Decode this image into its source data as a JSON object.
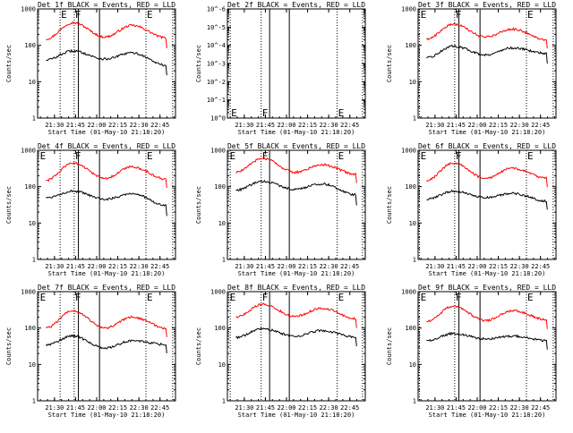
{
  "chart_data": [
    {
      "type": "line",
      "title": "Det 1f BLACK = Events, RED = LLD",
      "xlabel": "Start Time (01-May-10 21:18:20)",
      "ylabel": "Counts/sec",
      "x_ticks": [
        "21:30",
        "21:45",
        "22:00",
        "22:15",
        "22:30",
        "22:45"
      ],
      "y_ticks": [
        "1",
        "10",
        "100",
        "1000"
      ],
      "ylim": [
        1,
        1000
      ],
      "yscale": "log",
      "markers": [
        {
          "label": "E",
          "time": "21:34"
        },
        {
          "label": "F",
          "time": "21:44"
        },
        {
          "label": "E",
          "time": "22:35"
        }
      ],
      "solid_lines": [
        "21:47",
        "22:02"
      ],
      "dotted_lines": [
        "21:34",
        "21:44",
        "22:35",
        "22:54"
      ],
      "series": [
        {
          "color": "#ff0000",
          "peaks": [
            {
              "time": "21:24",
              "value": 150
            },
            {
              "time": "21:43",
              "value": 420
            },
            {
              "time": "22:06",
              "value": 170
            },
            {
              "time": "22:25",
              "value": 350
            },
            {
              "time": "22:50",
              "value": 160
            }
          ]
        },
        {
          "color": "#000000",
          "peaks": [
            {
              "time": "21:24",
              "value": 40
            },
            {
              "time": "21:43",
              "value": 70
            },
            {
              "time": "22:06",
              "value": 42
            },
            {
              "time": "22:25",
              "value": 62
            },
            {
              "time": "22:50",
              "value": 28
            }
          ]
        }
      ]
    },
    {
      "type": "line",
      "title": "Det 2f BLACK = Events, RED = LLD",
      "xlabel": "Start Time (01-May-10 21:18:20)",
      "ylabel": "Counts/sec",
      "x_ticks": [
        "21:30",
        "21:45",
        "22:00",
        "22:15",
        "22:30",
        "22:45"
      ],
      "y_ticks": [
        "10^0",
        "10^-1",
        "10^-2",
        "10^-3",
        "10^-4",
        "10^-5",
        "10^-6"
      ],
      "ylim": [
        1,
        1e-06
      ],
      "yscale": "log",
      "markers": [
        {
          "label": "E",
          "time": "21:20"
        },
        {
          "label": "F",
          "time": "21:42"
        },
        {
          "label": "E",
          "time": "22:36"
        }
      ],
      "solid_lines": [
        "21:48",
        "22:02"
      ],
      "dotted_lines": [
        "21:20",
        "21:42",
        "22:36",
        "22:54"
      ],
      "series": []
    },
    {
      "type": "line",
      "title": "Det 3f BLACK = Events, RED = LLD",
      "xlabel": "Start Time (01-May-10 21:18:20)",
      "ylabel": "Counts/sec",
      "x_ticks": [
        "21:30",
        "21:45",
        "22:00",
        "22:15",
        "22:30",
        "22:45"
      ],
      "y_ticks": [
        "1",
        "10",
        "100",
        "1000"
      ],
      "ylim": [
        1,
        1000
      ],
      "yscale": "log",
      "markers": [
        {
          "label": "E",
          "time": "21:19"
        },
        {
          "label": "F",
          "time": "21:44"
        },
        {
          "label": "E",
          "time": "22:35"
        }
      ],
      "solid_lines": [
        "21:47",
        "22:02"
      ],
      "dotted_lines": [
        "21:19",
        "21:44",
        "22:35",
        "22:54"
      ],
      "series": [
        {
          "color": "#ff0000",
          "peaks": [
            {
              "time": "21:24",
              "value": 150
            },
            {
              "time": "21:43",
              "value": 380
            },
            {
              "time": "22:06",
              "value": 170
            },
            {
              "time": "22:25",
              "value": 280
            },
            {
              "time": "22:50",
              "value": 140
            }
          ]
        },
        {
          "color": "#000000",
          "peaks": [
            {
              "time": "21:24",
              "value": 45
            },
            {
              "time": "21:43",
              "value": 95
            },
            {
              "time": "22:06",
              "value": 55
            },
            {
              "time": "22:25",
              "value": 85
            },
            {
              "time": "22:50",
              "value": 60
            }
          ]
        }
      ]
    },
    {
      "type": "line",
      "title": "Det 4f BLACK = Events, RED = LLD",
      "xlabel": "Start Time (01-May-10 21:18:20)",
      "ylabel": "Counts/sec",
      "x_ticks": [
        "21:30",
        "21:45",
        "22:00",
        "22:15",
        "22:30",
        "22:45"
      ],
      "y_ticks": [
        "1",
        "10",
        "100",
        "1000"
      ],
      "ylim": [
        1,
        1000
      ],
      "yscale": "log",
      "markers": [
        {
          "label": "E",
          "time": "21:19"
        },
        {
          "label": "F",
          "time": "21:44"
        },
        {
          "label": "E",
          "time": "22:35"
        }
      ],
      "solid_lines": [
        "21:47",
        "22:02"
      ],
      "dotted_lines": [
        "21:34",
        "21:44",
        "22:35",
        "22:54"
      ],
      "series": [
        {
          "color": "#ff0000",
          "peaks": [
            {
              "time": "21:24",
              "value": 150
            },
            {
              "time": "21:43",
              "value": 450
            },
            {
              "time": "22:06",
              "value": 170
            },
            {
              "time": "22:25",
              "value": 350
            },
            {
              "time": "22:50",
              "value": 160
            }
          ]
        },
        {
          "color": "#000000",
          "peaks": [
            {
              "time": "21:24",
              "value": 50
            },
            {
              "time": "21:43",
              "value": 75
            },
            {
              "time": "22:06",
              "value": 45
            },
            {
              "time": "22:25",
              "value": 65
            },
            {
              "time": "22:50",
              "value": 30
            }
          ]
        }
      ]
    },
    {
      "type": "line",
      "title": "Det 5f BLACK = Events, RED = LLD",
      "xlabel": "Start Time (01-May-10 21:18:20)",
      "ylabel": "Counts/sec",
      "x_ticks": [
        "21:30",
        "21:45",
        "22:00",
        "22:15",
        "22:30",
        "22:45"
      ],
      "y_ticks": [
        "1",
        "10",
        "100",
        "1000"
      ],
      "ylim": [
        1,
        1000
      ],
      "yscale": "log",
      "markers": [
        {
          "label": "E",
          "time": "21:19"
        },
        {
          "label": "F",
          "time": "21:42"
        },
        {
          "label": "E",
          "time": "22:36"
        }
      ],
      "solid_lines": [
        "21:48",
        "22:02"
      ],
      "dotted_lines": [
        "21:20",
        "21:42",
        "22:36",
        "22:54"
      ],
      "series": [
        {
          "color": "#ff0000",
          "peaks": [
            {
              "time": "21:24",
              "value": 250
            },
            {
              "time": "21:43",
              "value": 600
            },
            {
              "time": "22:06",
              "value": 250
            },
            {
              "time": "22:25",
              "value": 400
            },
            {
              "time": "22:50",
              "value": 220
            }
          ]
        },
        {
          "color": "#000000",
          "peaks": [
            {
              "time": "21:24",
              "value": 80
            },
            {
              "time": "21:43",
              "value": 140
            },
            {
              "time": "22:06",
              "value": 85
            },
            {
              "time": "22:25",
              "value": 120
            },
            {
              "time": "22:50",
              "value": 60
            }
          ]
        }
      ]
    },
    {
      "type": "line",
      "title": "Det 6f BLACK = Events, RED = LLD",
      "xlabel": "Start Time (01-May-10 21:18:20)",
      "ylabel": "Counts/sec",
      "x_ticks": [
        "21:30",
        "21:45",
        "22:00",
        "22:15",
        "22:30",
        "22:45"
      ],
      "y_ticks": [
        "1",
        "10",
        "100",
        "1000"
      ],
      "ylim": [
        1,
        1000
      ],
      "yscale": "log",
      "markers": [
        {
          "label": "E",
          "time": "21:19"
        },
        {
          "label": "F",
          "time": "21:44"
        },
        {
          "label": "E",
          "time": "22:35"
        }
      ],
      "solid_lines": [
        "21:47",
        "22:02"
      ],
      "dotted_lines": [
        "21:19",
        "21:44",
        "22:35",
        "22:54"
      ],
      "series": [
        {
          "color": "#ff0000",
          "peaks": [
            {
              "time": "21:24",
              "value": 150
            },
            {
              "time": "21:43",
              "value": 450
            },
            {
              "time": "22:06",
              "value": 170
            },
            {
              "time": "22:25",
              "value": 320
            },
            {
              "time": "22:50",
              "value": 170
            }
          ]
        },
        {
          "color": "#000000",
          "peaks": [
            {
              "time": "21:24",
              "value": 45
            },
            {
              "time": "21:43",
              "value": 75
            },
            {
              "time": "22:06",
              "value": 50
            },
            {
              "time": "22:25",
              "value": 65
            },
            {
              "time": "22:50",
              "value": 40
            }
          ]
        }
      ]
    },
    {
      "type": "line",
      "title": "Det 7f BLACK = Events, RED = LLD",
      "xlabel": "Start Time (01-May-10 21:18:20)",
      "ylabel": "Counts/sec",
      "x_ticks": [
        "21:30",
        "21:45",
        "22:00",
        "22:15",
        "22:30",
        "22:45"
      ],
      "y_ticks": [
        "1",
        "10",
        "100",
        "1000"
      ],
      "ylim": [
        1,
        1000
      ],
      "yscale": "log",
      "markers": [
        {
          "label": "E",
          "time": "21:19"
        },
        {
          "label": "F",
          "time": "21:44"
        },
        {
          "label": "E",
          "time": "22:35"
        }
      ],
      "solid_lines": [
        "21:47",
        "22:02"
      ],
      "dotted_lines": [
        "21:34",
        "21:44",
        "22:35",
        "22:54"
      ],
      "series": [
        {
          "color": "#ff0000",
          "peaks": [
            {
              "time": "21:24",
              "value": 100
            },
            {
              "time": "21:43",
              "value": 300
            },
            {
              "time": "22:06",
              "value": 100
            },
            {
              "time": "22:25",
              "value": 200
            },
            {
              "time": "22:50",
              "value": 100
            }
          ]
        },
        {
          "color": "#000000",
          "peaks": [
            {
              "time": "21:24",
              "value": 35
            },
            {
              "time": "21:43",
              "value": 60
            },
            {
              "time": "22:06",
              "value": 28
            },
            {
              "time": "22:25",
              "value": 45
            },
            {
              "time": "22:50",
              "value": 35
            }
          ]
        }
      ]
    },
    {
      "type": "line",
      "title": "Det 8f BLACK = Events, RED = LLD",
      "xlabel": "Start Time (01-May-10 21:18:20)",
      "ylabel": "Counts/sec",
      "x_ticks": [
        "21:30",
        "21:45",
        "22:00",
        "22:15",
        "22:30",
        "22:45"
      ],
      "y_ticks": [
        "1",
        "10",
        "100",
        "1000"
      ],
      "ylim": [
        1,
        1000
      ],
      "yscale": "log",
      "markers": [
        {
          "label": "E",
          "time": "21:19"
        },
        {
          "label": "F",
          "time": "21:42"
        },
        {
          "label": "E",
          "time": "22:36"
        }
      ],
      "solid_lines": [
        "21:48",
        "22:02"
      ],
      "dotted_lines": [
        "21:20",
        "21:42",
        "22:36",
        "22:54"
      ],
      "series": [
        {
          "color": "#ff0000",
          "peaks": [
            {
              "time": "21:24",
              "value": 200
            },
            {
              "time": "21:43",
              "value": 450
            },
            {
              "time": "22:06",
              "value": 210
            },
            {
              "time": "22:25",
              "value": 350
            },
            {
              "time": "22:50",
              "value": 180
            }
          ]
        },
        {
          "color": "#000000",
          "peaks": [
            {
              "time": "21:24",
              "value": 55
            },
            {
              "time": "21:43",
              "value": 95
            },
            {
              "time": "22:06",
              "value": 60
            },
            {
              "time": "22:25",
              "value": 85
            },
            {
              "time": "22:50",
              "value": 55
            }
          ]
        }
      ]
    },
    {
      "type": "line",
      "title": "Det 9f BLACK = Events, RED = LLD",
      "xlabel": "Start Time (01-May-10 21:18:20)",
      "ylabel": "Counts/sec",
      "x_ticks": [
        "21:30",
        "21:45",
        "22:00",
        "22:15",
        "22:30",
        "22:45"
      ],
      "y_ticks": [
        "1",
        "10",
        "100",
        "1000"
      ],
      "ylim": [
        1,
        1000
      ],
      "yscale": "log",
      "markers": [
        {
          "label": "E",
          "time": "21:19"
        },
        {
          "label": "F",
          "time": "21:44"
        },
        {
          "label": "E",
          "time": "22:35"
        }
      ],
      "solid_lines": [
        "21:47",
        "22:02"
      ],
      "dotted_lines": [
        "21:19",
        "21:44",
        "22:35",
        "22:54"
      ],
      "series": [
        {
          "color": "#ff0000",
          "peaks": [
            {
              "time": "21:24",
              "value": 150
            },
            {
              "time": "21:43",
              "value": 400
            },
            {
              "time": "22:06",
              "value": 160
            },
            {
              "time": "22:25",
              "value": 300
            },
            {
              "time": "22:50",
              "value": 170
            }
          ]
        },
        {
          "color": "#000000",
          "peaks": [
            {
              "time": "21:24",
              "value": 45
            },
            {
              "time": "21:43",
              "value": 70
            },
            {
              "time": "22:06",
              "value": 50
            },
            {
              "time": "22:25",
              "value": 60
            },
            {
              "time": "22:50",
              "value": 45
            }
          ]
        }
      ]
    }
  ]
}
